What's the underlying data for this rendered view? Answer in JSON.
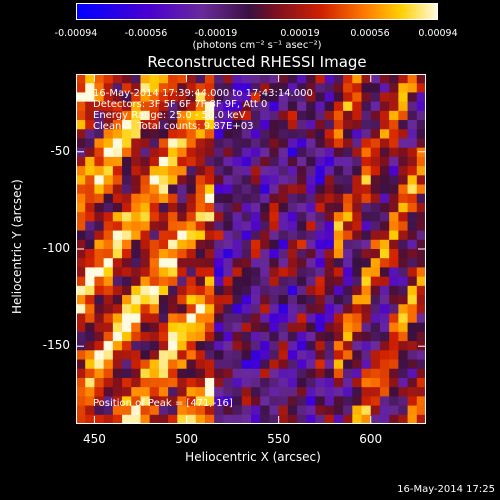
{
  "colorbar": {
    "ticks": [
      "-0.00094",
      "-0.00056",
      "-0.00019",
      "0.00019",
      "0.00056",
      "0.00094"
    ],
    "unit_label": "(photons cm⁻² s⁻¹ asec⁻²)"
  },
  "chart_data": {
    "type": "heatmap",
    "title": "Reconstructed RHESSI Image",
    "xlabel": "Heliocentric X (arcsec)",
    "ylabel": "Heliocentric Y (arcsec)",
    "xlim": [
      440,
      630
    ],
    "ylim": [
      -190,
      -10
    ],
    "xticks": [
      "450",
      "500",
      "550",
      "600"
    ],
    "yticks": [
      "-50",
      "-100",
      "-150"
    ],
    "colorbar_range": [
      -0.00094,
      0.00094
    ],
    "info_lines": [
      "16-May-2014 17:39:44.000 to 17:43:14.000",
      "Detectors: 3F 5F 6F 7F 8F 9F, Att 0",
      "Energy Range: 25.0 - 50.0 keV",
      "Clean     Total counts: 9.87E+03"
    ],
    "peak_label": "Position of Peak = [471,-16]"
  },
  "footer": {
    "datestamp": "16-May-2014 17:25"
  },
  "colors": {
    "background": "#000000",
    "axes": "#ffffff"
  }
}
